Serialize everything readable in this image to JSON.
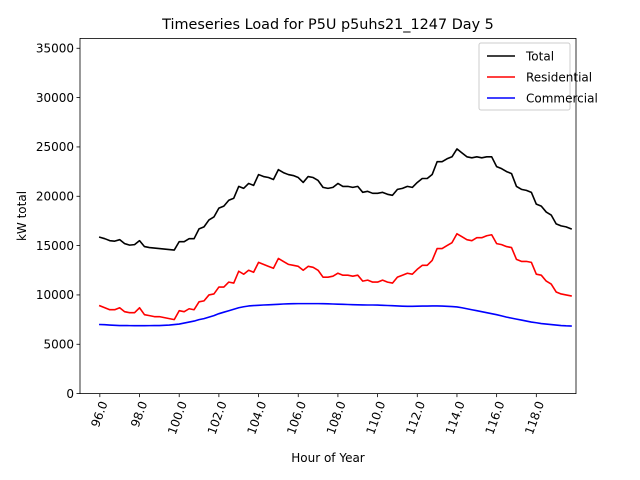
{
  "chart_data": {
    "type": "line",
    "title": "Timeseries Load for P5U p5uhs21_1247  Day 5",
    "xlabel": "Hour of Year",
    "ylabel": "kW total",
    "xlim": [
      95.0,
      120.0
    ],
    "ylim": [
      0,
      36000
    ],
    "xticks": [
      96,
      98,
      100,
      102,
      104,
      106,
      108,
      110,
      112,
      114,
      116,
      118
    ],
    "xtick_labels": [
      "96.0",
      "98.0",
      "100.0",
      "102.0",
      "104.0",
      "106.0",
      "108.0",
      "110.0",
      "112.0",
      "114.0",
      "116.0",
      "118.0"
    ],
    "yticks": [
      0,
      5000,
      10000,
      15000,
      20000,
      25000,
      30000,
      35000
    ],
    "ytick_labels": [
      "0",
      "5000",
      "10000",
      "15000",
      "20000",
      "25000",
      "30000",
      "35000"
    ],
    "grid": false,
    "legend_position": "top-right",
    "x": [
      96.0,
      96.25,
      96.5,
      96.75,
      97.0,
      97.25,
      97.5,
      97.75,
      98.0,
      98.25,
      98.5,
      98.75,
      99.0,
      99.25,
      99.5,
      99.75,
      100.0,
      100.25,
      100.5,
      100.75,
      101.0,
      101.25,
      101.5,
      101.75,
      102.0,
      102.25,
      102.5,
      102.75,
      103.0,
      103.25,
      103.5,
      103.75,
      104.0,
      104.25,
      104.5,
      104.75,
      105.0,
      105.25,
      105.5,
      105.75,
      106.0,
      106.25,
      106.5,
      106.75,
      107.0,
      107.25,
      107.5,
      107.75,
      108.0,
      108.25,
      108.5,
      108.75,
      109.0,
      109.25,
      109.5,
      109.75,
      110.0,
      110.25,
      110.5,
      110.75,
      111.0,
      111.25,
      111.5,
      111.75,
      112.0,
      112.25,
      112.5,
      112.75,
      113.0,
      113.25,
      113.5,
      113.75,
      114.0,
      114.25,
      114.5,
      114.75,
      115.0,
      115.25,
      115.5,
      115.75,
      116.0,
      116.25,
      116.5,
      116.75,
      117.0,
      117.25,
      117.5,
      117.75,
      118.0,
      118.25,
      118.5,
      118.75,
      119.0,
      119.25,
      119.5,
      119.75
    ],
    "series": [
      {
        "name": "Total",
        "color": "#000000",
        "values": [
          15850,
          15700,
          15500,
          15450,
          15600,
          15200,
          15050,
          15100,
          15500,
          14900,
          14800,
          14750,
          14700,
          14650,
          14600,
          14550,
          15400,
          15400,
          15700,
          15700,
          16700,
          16900,
          17600,
          17900,
          18800,
          19000,
          19600,
          19800,
          21000,
          20800,
          21300,
          21100,
          22200,
          22000,
          21900,
          21700,
          22700,
          22400,
          22200,
          22100,
          21900,
          21400,
          22000,
          21900,
          21600,
          20900,
          20800,
          20900,
          21300,
          21000,
          21000,
          20900,
          21000,
          20400,
          20500,
          20300,
          20300,
          20400,
          20200,
          20100,
          20700,
          20800,
          21000,
          20900,
          21400,
          21800,
          21800,
          22200,
          23500,
          23500,
          23800,
          24000,
          24800,
          24400,
          24000,
          23900,
          24000,
          23900,
          24000,
          24000,
          23000,
          22800,
          22500,
          22300,
          21000,
          20700,
          20600,
          20400,
          19200,
          19000,
          18400,
          18100,
          17200,
          17000,
          16900,
          16700
        ]
      },
      {
        "name": "Residential",
        "color": "#ff0000",
        "values": [
          8900,
          8700,
          8500,
          8500,
          8700,
          8300,
          8200,
          8200,
          8700,
          8000,
          7900,
          7800,
          7800,
          7700,
          7600,
          7500,
          8400,
          8300,
          8600,
          8500,
          9300,
          9400,
          10000,
          10100,
          10800,
          10800,
          11300,
          11200,
          12400,
          12100,
          12500,
          12300,
          13300,
          13100,
          12900,
          12700,
          13700,
          13400,
          13100,
          13000,
          12900,
          12500,
          12900,
          12800,
          12500,
          11800,
          11800,
          11900,
          12200,
          12000,
          12000,
          11900,
          12000,
          11400,
          11500,
          11300,
          11300,
          11500,
          11300,
          11200,
          11800,
          12000,
          12200,
          12100,
          12600,
          13000,
          13000,
          13500,
          14700,
          14700,
          15000,
          15300,
          16200,
          15900,
          15600,
          15500,
          15800,
          15800,
          16000,
          16100,
          15200,
          15100,
          14900,
          14800,
          13600,
          13400,
          13400,
          13300,
          12100,
          12000,
          11400,
          11100,
          10300,
          10100,
          10000,
          9900
        ]
      },
      {
        "name": "Commercial",
        "color": "#0000ff",
        "values": [
          7000,
          6980,
          6950,
          6920,
          6900,
          6900,
          6890,
          6880,
          6880,
          6880,
          6890,
          6900,
          6900,
          6920,
          6950,
          7000,
          7050,
          7150,
          7250,
          7350,
          7500,
          7600,
          7750,
          7900,
          8100,
          8250,
          8400,
          8550,
          8700,
          8800,
          8880,
          8920,
          8950,
          8980,
          9000,
          9020,
          9050,
          9080,
          9100,
          9110,
          9120,
          9120,
          9120,
          9120,
          9120,
          9110,
          9100,
          9080,
          9060,
          9050,
          9030,
          9010,
          9000,
          8990,
          8980,
          8980,
          8970,
          8950,
          8930,
          8910,
          8880,
          8860,
          8850,
          8850,
          8860,
          8870,
          8870,
          8880,
          8880,
          8870,
          8850,
          8820,
          8780,
          8700,
          8600,
          8500,
          8400,
          8300,
          8200,
          8100,
          8000,
          7880,
          7750,
          7650,
          7550,
          7450,
          7350,
          7250,
          7180,
          7100,
          7050,
          7000,
          6950,
          6900,
          6870,
          6850
        ]
      }
    ]
  }
}
